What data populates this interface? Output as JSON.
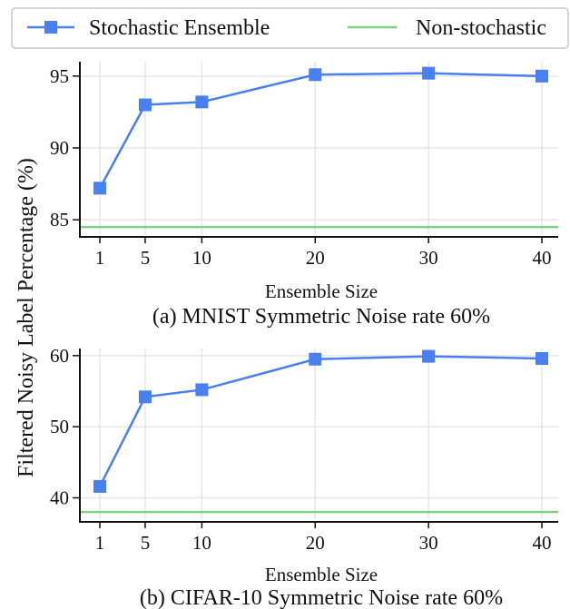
{
  "legend": {
    "items": [
      {
        "label": "Stochastic Ensemble",
        "color": "#4a7ff0",
        "marker": "square"
      },
      {
        "label": "Non-stochastic",
        "color": "#7fd17f",
        "marker": "none"
      }
    ]
  },
  "shared_ylabel": "Filtered Noisy Label Percentage (%)",
  "chart_data": [
    {
      "type": "line",
      "caption": "(a) MNIST Symmetric Noise rate 60%",
      "xlabel": "Ensemble Size",
      "x": [
        1,
        5,
        10,
        20,
        30,
        40
      ],
      "xticks": [
        1,
        5,
        10,
        20,
        30,
        40
      ],
      "yticks": [
        85,
        90,
        95
      ],
      "ylim": [
        84.0,
        96.0
      ],
      "grid": true,
      "legend_position": "top",
      "series": [
        {
          "name": "Stochastic Ensemble",
          "values": [
            87.2,
            93.0,
            93.2,
            95.1,
            95.2,
            95.0
          ],
          "color": "#4a7ff0"
        }
      ],
      "baseline": {
        "name": "Non-stochastic",
        "value": 84.5,
        "color": "#7fd17f"
      }
    },
    {
      "type": "line",
      "caption": "(b) CIFAR-10 Symmetric Noise rate 60%",
      "xlabel": "Ensemble Size",
      "x": [
        1,
        5,
        10,
        20,
        30,
        40
      ],
      "xticks": [
        1,
        5,
        10,
        20,
        30,
        40
      ],
      "yticks": [
        40,
        50,
        60
      ],
      "ylim": [
        37.0,
        61.0
      ],
      "grid": true,
      "legend_position": "top",
      "series": [
        {
          "name": "Stochastic Ensemble",
          "values": [
            41.6,
            54.2,
            55.2,
            59.5,
            59.9,
            59.6
          ],
          "color": "#4a7ff0"
        }
      ],
      "baseline": {
        "name": "Non-stochastic",
        "value": 38.0,
        "color": "#7fd17f"
      }
    }
  ]
}
